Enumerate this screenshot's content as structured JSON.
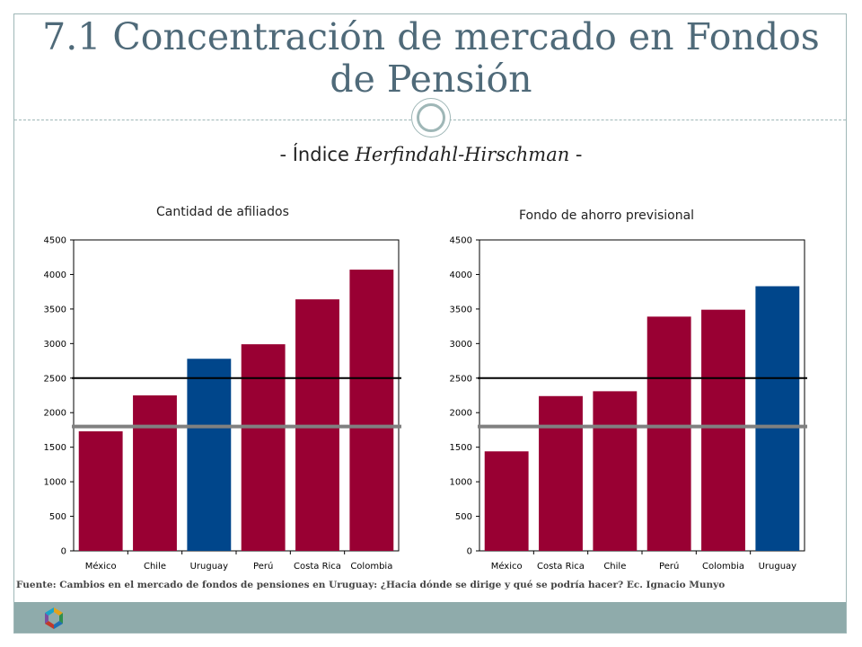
{
  "slide": {
    "title": "7.1 Concentración de mercado en Fondos de Pensión",
    "subtitle_prefix": "- Índice ",
    "subtitle_italic": "Herfindahl-Hirschman",
    "subtitle_suffix": " -",
    "source": "Fuente: Cambios en el mercado de fondos de pensiones en Uruguay: ¿Hacia dónde se dirige y qué se podría hacer? Ec. Ignacio Munyo"
  },
  "colors": {
    "bar": "#990033",
    "highlight": "#00468b",
    "ref_black": "#000000",
    "ref_gray": "#808080",
    "frame": "#9fb7b7",
    "footer": "#8fabab",
    "title": "#4f6a79"
  },
  "chart_data": [
    {
      "type": "bar",
      "title": "Cantidad de afiliados",
      "categories": [
        "México",
        "Chile",
        "Uruguay",
        "Perú",
        "Costa Rica",
        "Colombia"
      ],
      "values": [
        1730,
        2250,
        2780,
        2990,
        3640,
        4070
      ],
      "highlight": "Uruguay",
      "ylim": [
        0,
        4500
      ],
      "yticks": [
        0,
        500,
        1000,
        1500,
        2000,
        2500,
        3000,
        3500,
        4000,
        4500
      ],
      "reference_lines": [
        {
          "value": 2500,
          "color": "#000000"
        },
        {
          "value": 1800,
          "color": "#808080"
        }
      ],
      "grid": false
    },
    {
      "type": "bar",
      "title": "Fondo de ahorro previsional",
      "categories": [
        "México",
        "Costa Rica",
        "Chile",
        "Perú",
        "Colombia",
        "Uruguay"
      ],
      "values": [
        1440,
        2240,
        2310,
        3390,
        3490,
        3830
      ],
      "highlight": "Uruguay",
      "ylim": [
        0,
        4500
      ],
      "yticks": [
        0,
        500,
        1000,
        1500,
        2000,
        2500,
        3000,
        3500,
        4000,
        4500
      ],
      "reference_lines": [
        {
          "value": 2500,
          "color": "#000000"
        },
        {
          "value": 1800,
          "color": "#808080"
        }
      ],
      "grid": false
    }
  ]
}
